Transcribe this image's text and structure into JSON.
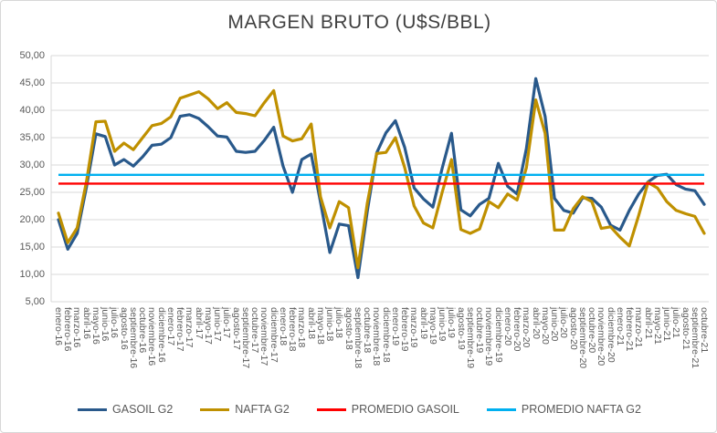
{
  "chart": {
    "title": "MARGEN BRUTO (U$S/BBL)"
  },
  "colors": {
    "gasoil": "#29598B",
    "nafta": "#BF9000",
    "promedio_gasoil": "#FF0000",
    "promedio_nafta": "#00B0F0",
    "gridline": "#D9D9D9",
    "axis_text": "#595959",
    "title_text": "#404040"
  },
  "legend": {
    "items": [
      {
        "label": "GASOIL G2",
        "color": "#29598B"
      },
      {
        "label": "NAFTA G2",
        "color": "#BF9000"
      },
      {
        "label": "PROMEDIO GASOIL",
        "color": "#FF0000"
      },
      {
        "label": "PROMEDIO NAFTA G2",
        "color": "#00B0F0"
      }
    ]
  },
  "chart_data": {
    "type": "line",
    "title": "MARGEN BRUTO (U$S/BBL)",
    "xlabel": "",
    "ylabel": "",
    "ylim": [
      5,
      50
    ],
    "ytick_step": 5,
    "ytick_labels": [
      "50,00",
      "45,00",
      "40,00",
      "35,00",
      "30,00",
      "25,00",
      "20,00",
      "15,00",
      "10,00",
      "5,00"
    ],
    "grid": "horizontal",
    "legend_position": "bottom",
    "categories": [
      "enero-16",
      "febrero-16",
      "marzo-16",
      "abril-16",
      "mayo-16",
      "junio-16",
      "julio-16",
      "agosto-16",
      "septiembre-16",
      "octubre-16",
      "noviembre-16",
      "diciembre-16",
      "enero-17",
      "febrero-17",
      "marzo-17",
      "abril-17",
      "mayo-17",
      "junio-17",
      "julio-17",
      "agosto-17",
      "septiembre-17",
      "octubre-17",
      "noviembre-17",
      "diciembre-17",
      "enero-18",
      "febrero-18",
      "marzo-18",
      "abril-18",
      "mayo-18",
      "junio-18",
      "julio-18",
      "agosto-18",
      "septiembre-18",
      "octubre-18",
      "noviembre-18",
      "diciembre-18",
      "enero-19",
      "febrero-19",
      "marzo-19",
      "abril-19",
      "mayo-19",
      "junio-19",
      "julio-19",
      "agosto-19",
      "septiembre-19",
      "octubre-19",
      "noviembre-19",
      "diciembre-19",
      "enero-20",
      "febrero-20",
      "marzo-20",
      "abril-20",
      "mayo-20",
      "junio-20",
      "julio-20",
      "agosto-20",
      "septiembre-20",
      "octubre-20",
      "noviembre-20",
      "diciembre-20",
      "enero-21",
      "febrero-21",
      "marzo-21",
      "abril-21",
      "mayo-21",
      "junio-21",
      "julio-21",
      "agosto-21",
      "septiembre-21",
      "octubre-21"
    ],
    "series": [
      {
        "name": "GASOIL G2",
        "color": "#29598B",
        "values": [
          20.0,
          14.6,
          17.5,
          26.0,
          35.7,
          35.2,
          30.0,
          31.0,
          29.8,
          31.5,
          33.6,
          33.8,
          35.0,
          38.9,
          39.2,
          38.5,
          37.0,
          35.3,
          35.1,
          32.5,
          32.3,
          32.5,
          34.5,
          36.9,
          29.8,
          25.0,
          31.0,
          32.0,
          23.2,
          14.0,
          19.2,
          18.9,
          9.4,
          21.5,
          32.2,
          35.9,
          38.1,
          33.2,
          25.8,
          23.8,
          22.3,
          29.4,
          35.8,
          21.8,
          20.7,
          22.8,
          23.9,
          30.3,
          26.1,
          24.7,
          33.0,
          45.8,
          38.9,
          23.9,
          21.7,
          21.2,
          24.0,
          23.9,
          22.3,
          19.0,
          18.1,
          21.7,
          24.7,
          26.9,
          28.1,
          28.3,
          26.4,
          25.6,
          25.3,
          22.8
        ]
      },
      {
        "name": "NAFTA G2",
        "color": "#BF9000",
        "values": [
          21.2,
          15.8,
          18.5,
          27.0,
          37.9,
          38.0,
          32.5,
          34.0,
          32.8,
          35.0,
          37.2,
          37.6,
          38.8,
          42.2,
          42.8,
          43.4,
          42.1,
          40.3,
          41.4,
          39.6,
          39.4,
          39.0,
          41.4,
          43.6,
          35.3,
          34.4,
          34.8,
          37.5,
          24.2,
          18.5,
          23.3,
          22.2,
          11.2,
          23.0,
          32.1,
          32.3,
          35.0,
          29.5,
          22.5,
          19.4,
          18.5,
          25.0,
          31.0,
          18.2,
          17.5,
          18.3,
          23.3,
          22.2,
          24.7,
          23.6,
          29.5,
          41.9,
          35.8,
          18.1,
          18.1,
          22.0,
          24.2,
          23.3,
          18.4,
          18.7,
          16.8,
          15.2,
          20.8,
          26.8,
          25.8,
          23.3,
          21.7,
          21.1,
          20.6,
          17.5
        ]
      },
      {
        "name": "PROMEDIO GASOIL",
        "color": "#FF0000",
        "constant": 26.6
      },
      {
        "name": "PROMEDIO NAFTA G2",
        "color": "#00B0F0",
        "constant": 28.2
      }
    ]
  }
}
